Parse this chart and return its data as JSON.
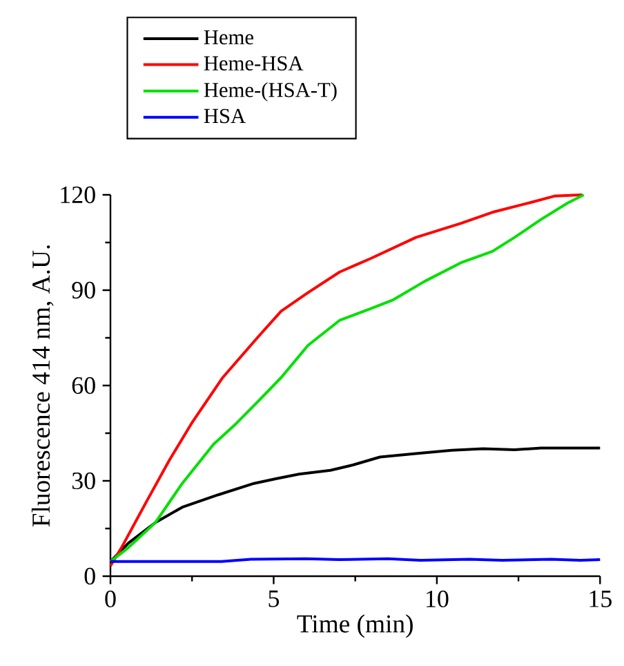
{
  "chart_data": {
    "type": "line",
    "xlabel": "Time (min)",
    "ylabel": "Fluorescence 414 nm, A.U.",
    "xlim": [
      0,
      15
    ],
    "ylim": [
      0,
      120
    ],
    "xticks": [
      0,
      5,
      10,
      15
    ],
    "yticks": [
      0,
      30,
      60,
      90,
      120
    ],
    "grid": false,
    "legend": "top left",
    "marker": "none",
    "line_style": "solid",
    "series": [
      {
        "name": "Heme",
        "color": "#000000",
        "x": [
          0,
          0.55,
          1.38,
          2.2,
          3.3,
          4.4,
          5.09,
          5.78,
          6.74,
          7.43,
          8.26,
          9.36,
          10.46,
          11.42,
          12.38,
          13.2,
          14.2,
          15.0
        ],
        "values": [
          4.6,
          10.4,
          16.9,
          21.7,
          25.6,
          29.2,
          30.7,
          32.1,
          33.3,
          35,
          37.5,
          38.6,
          39.6,
          40.1,
          39.8,
          40.3,
          40.3,
          40.3
        ]
      },
      {
        "name": "Heme-HSA",
        "color": "#ff0000",
        "x": [
          0,
          0.34,
          1.1,
          1.8,
          2.48,
          3.44,
          4.54,
          5.23,
          6.05,
          7.02,
          7.98,
          9.36,
          10.73,
          11.7,
          12.8,
          13.6,
          14.45
        ],
        "values": [
          3.2,
          9,
          23.4,
          36.4,
          48,
          62.5,
          75.5,
          83.4,
          89.2,
          95.7,
          100,
          106.6,
          111,
          114.5,
          117.4,
          119.6,
          120
        ]
      },
      {
        "name": "Heme-(HSA-T)",
        "color": "#00e000",
        "x": [
          0,
          0.55,
          1.38,
          2.2,
          3.16,
          3.85,
          4.54,
          5.23,
          6.05,
          7.02,
          7.98,
          8.67,
          9.63,
          10.73,
          11.7,
          12.38,
          13.2,
          14.0,
          14.5
        ],
        "values": [
          4.6,
          9,
          16.9,
          29.2,
          41.5,
          48,
          55.2,
          62.5,
          72.6,
          80.5,
          84.2,
          87,
          92.8,
          98.6,
          102.2,
          106.6,
          112.3,
          117.4,
          120
        ]
      },
      {
        "name": "HSA",
        "color": "#0000ff",
        "x": [
          0,
          1.5,
          3.4,
          4.3,
          6,
          7,
          8.5,
          9.5,
          11,
          12,
          13.5,
          14.4,
          15
        ],
        "values": [
          4.6,
          4.6,
          4.6,
          5.3,
          5.5,
          5.2,
          5.5,
          5.0,
          5.3,
          5.0,
          5.3,
          5.0,
          5.2
        ]
      }
    ]
  }
}
